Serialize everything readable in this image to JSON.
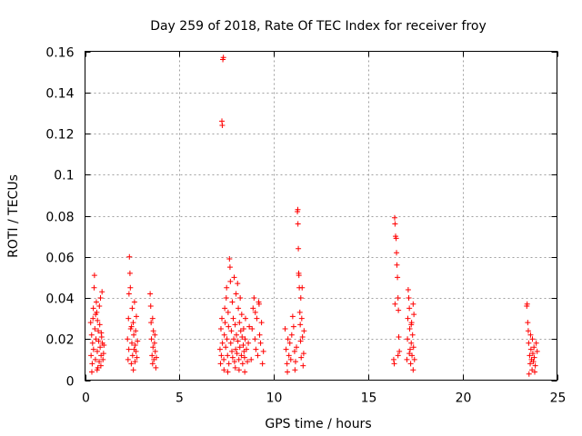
{
  "chart_data": {
    "type": "scatter",
    "title": "Day 259 of 2018, Rate Of TEC Index for receiver froy",
    "xlabel": "GPS time / hours",
    "ylabel": "ROTI / TECUs",
    "xlim": [
      0,
      25
    ],
    "ylim": [
      0,
      0.16
    ],
    "xticks": [
      0,
      5,
      10,
      15,
      20,
      25
    ],
    "xtick_labels": [
      "0",
      "5",
      "10",
      "15",
      "20",
      "25"
    ],
    "yticks": [
      0,
      0.02,
      0.04,
      0.06,
      0.08,
      0.1,
      0.12,
      0.14,
      0.16
    ],
    "ytick_labels": [
      "0",
      "0.02",
      "0.04",
      "0.06",
      "0.08",
      "0.1",
      "0.12",
      "0.14",
      "0.16"
    ],
    "grid": true,
    "marker": "+",
    "marker_color": "#ff0000",
    "series": [
      {
        "name": "ROTI",
        "points": [
          [
            0.3,
            0.028
          ],
          [
            0.32,
            0.012
          ],
          [
            0.35,
            0.022
          ],
          [
            0.38,
            0.008
          ],
          [
            0.4,
            0.018
          ],
          [
            0.42,
            0.03
          ],
          [
            0.45,
            0.015
          ],
          [
            0.48,
            0.045
          ],
          [
            0.5,
            0.051
          ],
          [
            0.52,
            0.025
          ],
          [
            0.55,
            0.01
          ],
          [
            0.58,
            0.02
          ],
          [
            0.6,
            0.038
          ],
          [
            0.62,
            0.033
          ],
          [
            0.65,
            0.014
          ],
          [
            0.68,
            0.006
          ],
          [
            0.7,
            0.024
          ],
          [
            0.72,
            0.019
          ],
          [
            0.75,
            0.009
          ],
          [
            0.78,
            0.027
          ],
          [
            0.8,
            0.016
          ],
          [
            0.82,
            0.04
          ],
          [
            0.85,
            0.012
          ],
          [
            0.88,
            0.021
          ],
          [
            0.9,
            0.043
          ],
          [
            0.92,
            0.018
          ],
          [
            0.95,
            0.01
          ],
          [
            0.98,
            0.013
          ],
          [
            1.0,
            0.017
          ],
          [
            0.44,
            0.035
          ],
          [
            0.56,
            0.032
          ],
          [
            0.66,
            0.029
          ],
          [
            0.76,
            0.036
          ],
          [
            0.86,
            0.023
          ],
          [
            0.36,
            0.004
          ],
          [
            0.64,
            0.005
          ],
          [
            0.84,
            0.007
          ],
          [
            2.25,
            0.02
          ],
          [
            2.28,
            0.01
          ],
          [
            2.3,
            0.03
          ],
          [
            2.32,
            0.015
          ],
          [
            2.35,
            0.06
          ],
          [
            2.38,
            0.052
          ],
          [
            2.4,
            0.045
          ],
          [
            2.42,
            0.025
          ],
          [
            2.45,
            0.008
          ],
          [
            2.48,
            0.018
          ],
          [
            2.5,
            0.035
          ],
          [
            2.52,
            0.012
          ],
          [
            2.55,
            0.028
          ],
          [
            2.58,
            0.022
          ],
          [
            2.6,
            0.015
          ],
          [
            2.62,
            0.038
          ],
          [
            2.65,
            0.009
          ],
          [
            2.68,
            0.024
          ],
          [
            2.7,
            0.014
          ],
          [
            2.72,
            0.031
          ],
          [
            2.75,
            0.011
          ],
          [
            2.78,
            0.019
          ],
          [
            2.33,
            0.042
          ],
          [
            2.46,
            0.026
          ],
          [
            2.56,
            0.005
          ],
          [
            2.66,
            0.017
          ],
          [
            3.45,
            0.042
          ],
          [
            3.48,
            0.036
          ],
          [
            3.5,
            0.028
          ],
          [
            3.52,
            0.02
          ],
          [
            3.55,
            0.012
          ],
          [
            3.58,
            0.008
          ],
          [
            3.6,
            0.016
          ],
          [
            3.62,
            0.024
          ],
          [
            3.65,
            0.01
          ],
          [
            3.68,
            0.018
          ],
          [
            3.7,
            0.022
          ],
          [
            3.72,
            0.014
          ],
          [
            3.75,
            0.006
          ],
          [
            3.78,
            0.011
          ],
          [
            3.58,
            0.03
          ],
          [
            7.15,
            0.015
          ],
          [
            7.18,
            0.008
          ],
          [
            7.2,
            0.025
          ],
          [
            7.22,
            0.012
          ],
          [
            7.25,
            0.03
          ],
          [
            7.28,
            0.018
          ],
          [
            7.3,
            0.156
          ],
          [
            7.33,
            0.157
          ],
          [
            7.25,
            0.126
          ],
          [
            7.27,
            0.124
          ],
          [
            7.35,
            0.01
          ],
          [
            7.38,
            0.022
          ],
          [
            7.4,
            0.035
          ],
          [
            7.42,
            0.028
          ],
          [
            7.45,
            0.016
          ],
          [
            7.48,
            0.04
          ],
          [
            7.5,
            0.045
          ],
          [
            7.52,
            0.02
          ],
          [
            7.55,
            0.012
          ],
          [
            7.58,
            0.033
          ],
          [
            7.6,
            0.026
          ],
          [
            7.62,
            0.008
          ],
          [
            7.65,
            0.059
          ],
          [
            7.68,
            0.055
          ],
          [
            7.7,
            0.048
          ],
          [
            7.72,
            0.018
          ],
          [
            7.75,
            0.024
          ],
          [
            7.78,
            0.014
          ],
          [
            7.8,
            0.038
          ],
          [
            7.82,
            0.011
          ],
          [
            7.85,
            0.03
          ],
          [
            7.88,
            0.02
          ],
          [
            7.9,
            0.05
          ],
          [
            7.92,
            0.009
          ],
          [
            7.95,
            0.027
          ],
          [
            7.98,
            0.015
          ],
          [
            8.0,
            0.042
          ],
          [
            8.02,
            0.022
          ],
          [
            8.05,
            0.013
          ],
          [
            8.08,
            0.047
          ],
          [
            8.1,
            0.019
          ],
          [
            8.12,
            0.035
          ],
          [
            8.15,
            0.01
          ],
          [
            8.18,
            0.028
          ],
          [
            8.2,
            0.016
          ],
          [
            8.22,
            0.04
          ],
          [
            8.25,
            0.024
          ],
          [
            8.28,
            0.012
          ],
          [
            8.3,
            0.032
          ],
          [
            8.32,
            0.021
          ],
          [
            8.35,
            0.008
          ],
          [
            8.38,
            0.017
          ],
          [
            8.4,
            0.025
          ],
          [
            8.42,
            0.014
          ],
          [
            8.45,
            0.011
          ],
          [
            8.48,
            0.02
          ],
          [
            8.5,
            0.03
          ],
          [
            8.55,
            0.015
          ],
          [
            8.6,
            0.009
          ],
          [
            8.65,
            0.018
          ],
          [
            8.7,
            0.026
          ],
          [
            7.36,
            0.005
          ],
          [
            7.56,
            0.004
          ],
          [
            7.96,
            0.006
          ],
          [
            8.16,
            0.005
          ],
          [
            8.46,
            0.004
          ],
          [
            8.8,
            0.01
          ],
          [
            8.85,
            0.025
          ],
          [
            8.9,
            0.035
          ],
          [
            8.95,
            0.04
          ],
          [
            9.0,
            0.02
          ],
          [
            9.05,
            0.015
          ],
          [
            9.1,
            0.03
          ],
          [
            9.15,
            0.012
          ],
          [
            9.2,
            0.038
          ],
          [
            9.25,
            0.022
          ],
          [
            9.3,
            0.018
          ],
          [
            9.35,
            0.028
          ],
          [
            9.4,
            0.008
          ],
          [
            9.45,
            0.014
          ],
          [
            9.02,
            0.033
          ],
          [
            9.22,
            0.037
          ],
          [
            10.6,
            0.025
          ],
          [
            10.65,
            0.015
          ],
          [
            10.7,
            0.008
          ],
          [
            10.75,
            0.02
          ],
          [
            10.8,
            0.012
          ],
          [
            10.85,
            0.018
          ],
          [
            10.9,
            0.01
          ],
          [
            10.95,
            0.022
          ],
          [
            11.0,
            0.031
          ],
          [
            11.05,
            0.026
          ],
          [
            11.1,
            0.014
          ],
          [
            11.15,
            0.009
          ],
          [
            11.2,
            0.016
          ],
          [
            11.25,
            0.082
          ],
          [
            11.27,
            0.083
          ],
          [
            11.28,
            0.076
          ],
          [
            11.3,
            0.064
          ],
          [
            11.32,
            0.052
          ],
          [
            11.35,
            0.045
          ],
          [
            11.38,
            0.033
          ],
          [
            11.4,
            0.027
          ],
          [
            11.42,
            0.019
          ],
          [
            11.45,
            0.011
          ],
          [
            11.48,
            0.03
          ],
          [
            11.5,
            0.045
          ],
          [
            11.52,
            0.021
          ],
          [
            11.55,
            0.007
          ],
          [
            11.58,
            0.013
          ],
          [
            11.6,
            0.024
          ],
          [
            11.33,
            0.051
          ],
          [
            11.43,
            0.04
          ],
          [
            10.72,
            0.004
          ],
          [
            11.12,
            0.005
          ],
          [
            16.35,
            0.01
          ],
          [
            16.38,
            0.008
          ],
          [
            16.4,
            0.079
          ],
          [
            16.42,
            0.076
          ],
          [
            16.45,
            0.07
          ],
          [
            16.48,
            0.069
          ],
          [
            16.5,
            0.062
          ],
          [
            16.52,
            0.056
          ],
          [
            16.55,
            0.05
          ],
          [
            16.58,
            0.04
          ],
          [
            16.6,
            0.034
          ],
          [
            16.62,
            0.021
          ],
          [
            16.65,
            0.014
          ],
          [
            16.42,
            0.037
          ],
          [
            16.58,
            0.012
          ],
          [
            17.05,
            0.01
          ],
          [
            17.08,
            0.02
          ],
          [
            17.1,
            0.03
          ],
          [
            17.12,
            0.044
          ],
          [
            17.15,
            0.04
          ],
          [
            17.18,
            0.035
          ],
          [
            17.2,
            0.025
          ],
          [
            17.22,
            0.015
          ],
          [
            17.25,
            0.008
          ],
          [
            17.28,
            0.018
          ],
          [
            17.3,
            0.028
          ],
          [
            17.32,
            0.012
          ],
          [
            17.35,
            0.022
          ],
          [
            17.38,
            0.005
          ],
          [
            17.4,
            0.016
          ],
          [
            17.42,
            0.032
          ],
          [
            17.45,
            0.01
          ],
          [
            17.18,
            0.013
          ],
          [
            17.28,
            0.027
          ],
          [
            17.38,
            0.037
          ],
          [
            23.4,
            0.036
          ],
          [
            23.42,
            0.037
          ],
          [
            23.45,
            0.028
          ],
          [
            23.48,
            0.024
          ],
          [
            23.5,
            0.018
          ],
          [
            23.55,
            0.012
          ],
          [
            23.58,
            0.008
          ],
          [
            23.6,
            0.022
          ],
          [
            23.62,
            0.015
          ],
          [
            23.65,
            0.01
          ],
          [
            23.68,
            0.005
          ],
          [
            23.7,
            0.02
          ],
          [
            23.72,
            0.013
          ],
          [
            23.75,
            0.009
          ],
          [
            23.78,
            0.016
          ],
          [
            23.8,
            0.011
          ],
          [
            23.85,
            0.007
          ],
          [
            23.9,
            0.018
          ],
          [
            23.95,
            0.014
          ],
          [
            23.52,
            0.003
          ],
          [
            23.82,
            0.004
          ]
        ]
      }
    ]
  }
}
